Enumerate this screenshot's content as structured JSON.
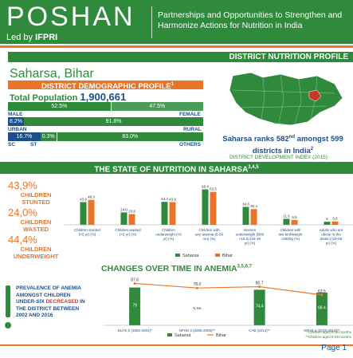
{
  "header": {
    "logo": "POSHAN",
    "led_by_prefix": "Led by",
    "led_by_org": "IFPRI",
    "tagline": "Partnerships and Opportunities to Strengthen and Harmonize Actions for Nutrition in India"
  },
  "profile_banner": "DISTRICT NUTRITION PROFILE",
  "district": "Saharsa, Bihar",
  "demographic": {
    "title": "DISTRICT DEMOGRAPHIC PROFILE",
    "title_sup": "1",
    "total_label": "Total Population",
    "total_value": "1,900,661",
    "sex": {
      "male_pct": "52.5%",
      "female_pct": "47.5%",
      "male_label": "MALE",
      "female_label": "FEMALE"
    },
    "area": {
      "urban_pct": "8.2%",
      "rural_pct": "91.8%",
      "urban_label": "URBAN",
      "rural_label": "RURAL"
    },
    "caste": {
      "sc_pct": "16.7%",
      "st_pct": "0.3%",
      "others_pct": "83.0%",
      "sc_label": "SC",
      "st_label": "ST",
      "others_label": "OTHERS"
    }
  },
  "rank": {
    "line1": "Saharsa ranks 582",
    "sup": "nd",
    "line1b": " amongst 599",
    "line2": "districts in India",
    "line2_sup": "2",
    "source": "DISTRICT DEVELOPMENT INDEX (2015)"
  },
  "state_banner": "THE STATE OF NUTRITION IN SAHARSA",
  "state_banner_sup": "3,4,5",
  "kpis": [
    {
      "pct": "43,9%",
      "text": "CHILDREN STUNTED"
    },
    {
      "pct": "24,0%",
      "text": "CHILDREN WASTED"
    },
    {
      "pct": "44,4%",
      "text": "CHILDREN UNDERWEIGHT"
    }
  ],
  "chart_data": [
    {
      "type": "bar",
      "title": "",
      "categories": [
        "Children stunted (<5 yr) (%)",
        "Children wasted (<5 yr) (%)",
        "Children underweight (<5 yr) (%)",
        "Children with any anemia (6-59 mo) (%)",
        "Women underweight (BMI <18.5) (15-49 yr) (%)",
        "Children with low birthweight <2500g (%)",
        "Adults who are obese in the district (18-59 yr) (%)"
      ],
      "series": [
        {
          "name": "Saharsa",
          "color": "#2f8a3c",
          "values": [
            43.9,
            24.0,
            44.4,
            68.4,
            34.6,
            11.6,
            6
          ]
        },
        {
          "name": "Bihar",
          "color": "#e8742a",
          "values": [
            48.3,
            20.8,
            43.9,
            63.5,
            30.4,
            9.5,
            6.6
          ]
        }
      ],
      "value_labels": {
        "Saharsa": [
          "43.9",
          "24.0",
          "44.4",
          "68.4",
          "34.6",
          "11.6",
          "6"
        ],
        "Bihar": [
          "48.3",
          "20.8",
          "43.9",
          "63.5",
          "30.4",
          "9.5",
          "6.6"
        ]
      },
      "ylim": [
        0,
        80
      ],
      "legend": "bottom"
    },
    {
      "type": "bar",
      "title": "CHANGES OVER TIME IN ANEMIA",
      "title_sup": "3,5,6,7",
      "categories": [
        "DLHS 2 (2002-2004)*",
        "NFHS 3 (2005-2006)**",
        "CAB (2014)**",
        "NFHS 4 (2015-2016)**"
      ],
      "series": [
        {
          "name": "Saharsa",
          "color": "#2f8a3c",
          "values": [
            79,
            null,
            74.4,
            68.4
          ]
        },
        {
          "name": "Bihar",
          "color": "#e8742a",
          "values": [
            87.6,
            78.0,
            80.7,
            63.5
          ]
        }
      ],
      "value_labels": {
        "Saharsa": [
          "79",
          "N Da",
          "74.4",
          "68.4"
        ],
        "Bihar": [
          "87.6",
          "78.0",
          "80.7",
          "63.5"
        ]
      },
      "ylim": [
        0,
        90
      ],
      "legend": "bottom",
      "notes": [
        "*Children aged 6-35 months",
        "**Children aged 6-59 months"
      ]
    }
  ],
  "anemia_box": {
    "icon": "exclamation-icon",
    "text_a": "PREVALENCE OF ANEMIA AMONGST CHILDREN UNDER-SIX ",
    "text_b": "DECREASED",
    "text_c": " IN THE DISTRICT BETWEEN 2002 AND 2016"
  },
  "page": "Page 1",
  "colors": {
    "green": "#2f8a3c",
    "orange": "#e8742a",
    "blue": "#1b4f8a",
    "red": "#c0392b"
  }
}
